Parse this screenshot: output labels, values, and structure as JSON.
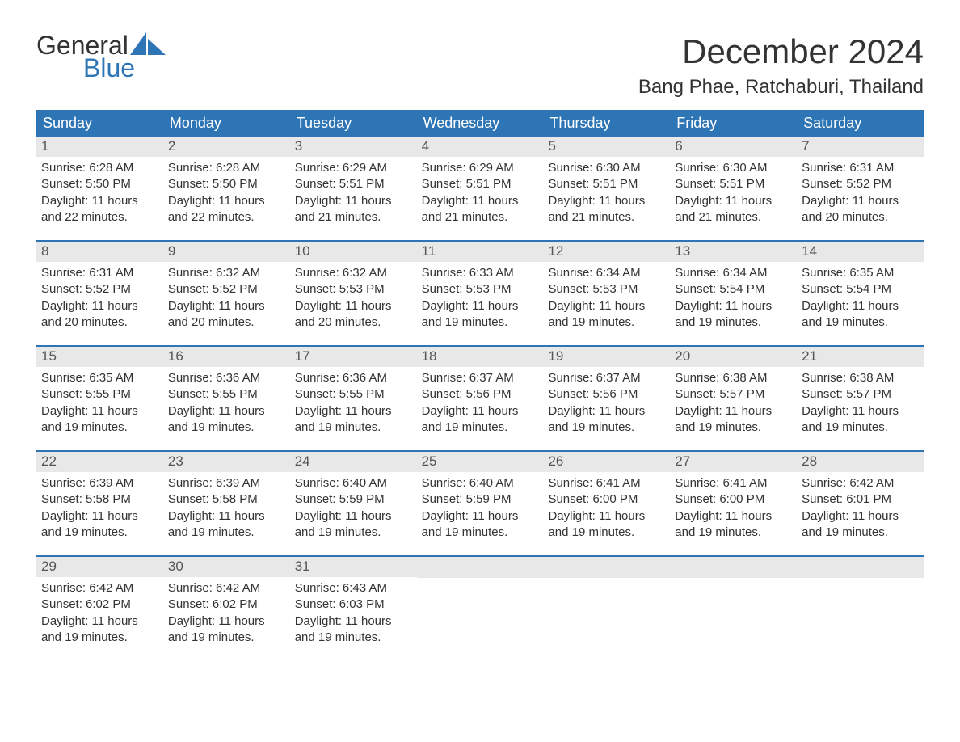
{
  "logo": {
    "general": "General",
    "blue": "Blue",
    "sail_color": "#2e75b6"
  },
  "header": {
    "month_title": "December 2024",
    "location": "Bang Phae, Ratchaburi, Thailand"
  },
  "style": {
    "header_bg": "#2e75b6",
    "header_text_color": "#ffffff",
    "daynum_bg": "#e8e8e8",
    "daynum_color": "#555555",
    "body_text_color": "#333333",
    "week_border_color": "#2e75b6",
    "title_fontsize": 42,
    "location_fontsize": 24,
    "weekday_fontsize": 18,
    "daynum_fontsize": 17,
    "body_fontsize": 15
  },
  "weekdays": [
    "Sunday",
    "Monday",
    "Tuesday",
    "Wednesday",
    "Thursday",
    "Friday",
    "Saturday"
  ],
  "weeks": [
    [
      {
        "n": "1",
        "sunrise": "Sunrise: 6:28 AM",
        "sunset": "Sunset: 5:50 PM",
        "d1": "Daylight: 11 hours",
        "d2": "and 22 minutes."
      },
      {
        "n": "2",
        "sunrise": "Sunrise: 6:28 AM",
        "sunset": "Sunset: 5:50 PM",
        "d1": "Daylight: 11 hours",
        "d2": "and 22 minutes."
      },
      {
        "n": "3",
        "sunrise": "Sunrise: 6:29 AM",
        "sunset": "Sunset: 5:51 PM",
        "d1": "Daylight: 11 hours",
        "d2": "and 21 minutes."
      },
      {
        "n": "4",
        "sunrise": "Sunrise: 6:29 AM",
        "sunset": "Sunset: 5:51 PM",
        "d1": "Daylight: 11 hours",
        "d2": "and 21 minutes."
      },
      {
        "n": "5",
        "sunrise": "Sunrise: 6:30 AM",
        "sunset": "Sunset: 5:51 PM",
        "d1": "Daylight: 11 hours",
        "d2": "and 21 minutes."
      },
      {
        "n": "6",
        "sunrise": "Sunrise: 6:30 AM",
        "sunset": "Sunset: 5:51 PM",
        "d1": "Daylight: 11 hours",
        "d2": "and 21 minutes."
      },
      {
        "n": "7",
        "sunrise": "Sunrise: 6:31 AM",
        "sunset": "Sunset: 5:52 PM",
        "d1": "Daylight: 11 hours",
        "d2": "and 20 minutes."
      }
    ],
    [
      {
        "n": "8",
        "sunrise": "Sunrise: 6:31 AM",
        "sunset": "Sunset: 5:52 PM",
        "d1": "Daylight: 11 hours",
        "d2": "and 20 minutes."
      },
      {
        "n": "9",
        "sunrise": "Sunrise: 6:32 AM",
        "sunset": "Sunset: 5:52 PM",
        "d1": "Daylight: 11 hours",
        "d2": "and 20 minutes."
      },
      {
        "n": "10",
        "sunrise": "Sunrise: 6:32 AM",
        "sunset": "Sunset: 5:53 PM",
        "d1": "Daylight: 11 hours",
        "d2": "and 20 minutes."
      },
      {
        "n": "11",
        "sunrise": "Sunrise: 6:33 AM",
        "sunset": "Sunset: 5:53 PM",
        "d1": "Daylight: 11 hours",
        "d2": "and 19 minutes."
      },
      {
        "n": "12",
        "sunrise": "Sunrise: 6:34 AM",
        "sunset": "Sunset: 5:53 PM",
        "d1": "Daylight: 11 hours",
        "d2": "and 19 minutes."
      },
      {
        "n": "13",
        "sunrise": "Sunrise: 6:34 AM",
        "sunset": "Sunset: 5:54 PM",
        "d1": "Daylight: 11 hours",
        "d2": "and 19 minutes."
      },
      {
        "n": "14",
        "sunrise": "Sunrise: 6:35 AM",
        "sunset": "Sunset: 5:54 PM",
        "d1": "Daylight: 11 hours",
        "d2": "and 19 minutes."
      }
    ],
    [
      {
        "n": "15",
        "sunrise": "Sunrise: 6:35 AM",
        "sunset": "Sunset: 5:55 PM",
        "d1": "Daylight: 11 hours",
        "d2": "and 19 minutes."
      },
      {
        "n": "16",
        "sunrise": "Sunrise: 6:36 AM",
        "sunset": "Sunset: 5:55 PM",
        "d1": "Daylight: 11 hours",
        "d2": "and 19 minutes."
      },
      {
        "n": "17",
        "sunrise": "Sunrise: 6:36 AM",
        "sunset": "Sunset: 5:55 PM",
        "d1": "Daylight: 11 hours",
        "d2": "and 19 minutes."
      },
      {
        "n": "18",
        "sunrise": "Sunrise: 6:37 AM",
        "sunset": "Sunset: 5:56 PM",
        "d1": "Daylight: 11 hours",
        "d2": "and 19 minutes."
      },
      {
        "n": "19",
        "sunrise": "Sunrise: 6:37 AM",
        "sunset": "Sunset: 5:56 PM",
        "d1": "Daylight: 11 hours",
        "d2": "and 19 minutes."
      },
      {
        "n": "20",
        "sunrise": "Sunrise: 6:38 AM",
        "sunset": "Sunset: 5:57 PM",
        "d1": "Daylight: 11 hours",
        "d2": "and 19 minutes."
      },
      {
        "n": "21",
        "sunrise": "Sunrise: 6:38 AM",
        "sunset": "Sunset: 5:57 PM",
        "d1": "Daylight: 11 hours",
        "d2": "and 19 minutes."
      }
    ],
    [
      {
        "n": "22",
        "sunrise": "Sunrise: 6:39 AM",
        "sunset": "Sunset: 5:58 PM",
        "d1": "Daylight: 11 hours",
        "d2": "and 19 minutes."
      },
      {
        "n": "23",
        "sunrise": "Sunrise: 6:39 AM",
        "sunset": "Sunset: 5:58 PM",
        "d1": "Daylight: 11 hours",
        "d2": "and 19 minutes."
      },
      {
        "n": "24",
        "sunrise": "Sunrise: 6:40 AM",
        "sunset": "Sunset: 5:59 PM",
        "d1": "Daylight: 11 hours",
        "d2": "and 19 minutes."
      },
      {
        "n": "25",
        "sunrise": "Sunrise: 6:40 AM",
        "sunset": "Sunset: 5:59 PM",
        "d1": "Daylight: 11 hours",
        "d2": "and 19 minutes."
      },
      {
        "n": "26",
        "sunrise": "Sunrise: 6:41 AM",
        "sunset": "Sunset: 6:00 PM",
        "d1": "Daylight: 11 hours",
        "d2": "and 19 minutes."
      },
      {
        "n": "27",
        "sunrise": "Sunrise: 6:41 AM",
        "sunset": "Sunset: 6:00 PM",
        "d1": "Daylight: 11 hours",
        "d2": "and 19 minutes."
      },
      {
        "n": "28",
        "sunrise": "Sunrise: 6:42 AM",
        "sunset": "Sunset: 6:01 PM",
        "d1": "Daylight: 11 hours",
        "d2": "and 19 minutes."
      }
    ],
    [
      {
        "n": "29",
        "sunrise": "Sunrise: 6:42 AM",
        "sunset": "Sunset: 6:02 PM",
        "d1": "Daylight: 11 hours",
        "d2": "and 19 minutes."
      },
      {
        "n": "30",
        "sunrise": "Sunrise: 6:42 AM",
        "sunset": "Sunset: 6:02 PM",
        "d1": "Daylight: 11 hours",
        "d2": "and 19 minutes."
      },
      {
        "n": "31",
        "sunrise": "Sunrise: 6:43 AM",
        "sunset": "Sunset: 6:03 PM",
        "d1": "Daylight: 11 hours",
        "d2": "and 19 minutes."
      },
      {
        "empty": true
      },
      {
        "empty": true
      },
      {
        "empty": true
      },
      {
        "empty": true
      }
    ]
  ]
}
